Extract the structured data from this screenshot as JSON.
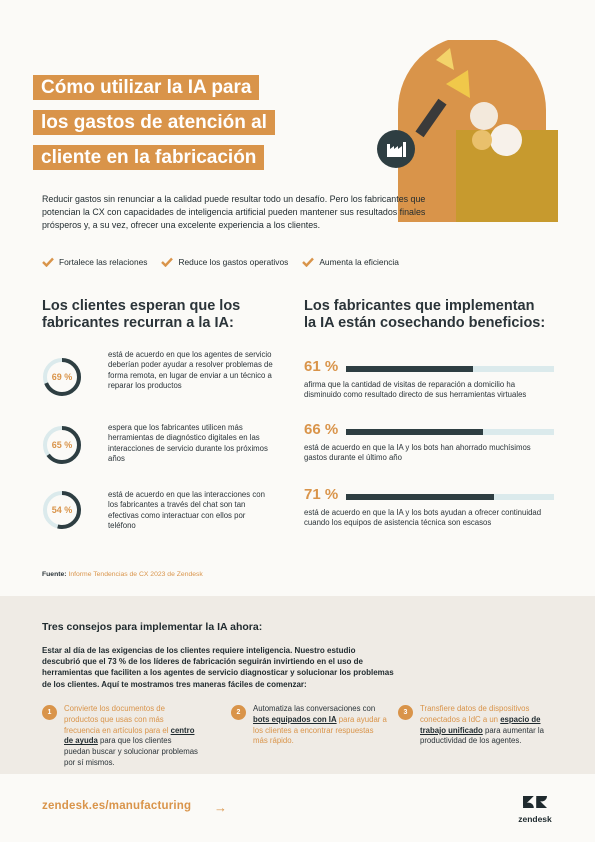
{
  "header": {
    "title_lines": [
      "Cómo utilizar la IA para",
      "los gastos de atención al",
      "cliente en la fabricación"
    ]
  },
  "intro": "Reducir gastos sin renunciar a la calidad puede resultar todo un desafío. Pero los fabricantes que potencian la CX con capacidades de inteligencia artificial pueden mantener sus resultados finales prósperos y, a su vez, ofrecer una excelente experiencia a los clientes.",
  "checks": [
    "Fortalece las relaciones",
    "Reduce los gastos operativos",
    "Aumenta la eficiencia"
  ],
  "left": {
    "title_lines": [
      "Los clientes esperan que los",
      "fabricantes recurran a la IA:"
    ],
    "stats": [
      {
        "pct_label": "69 %",
        "value": 69,
        "text": "está de acuerdo en que los agentes de servicio deberían poder ayudar a resolver problemas de forma remota, en lugar de enviar a un técnico a reparar los productos"
      },
      {
        "pct_label": "65 %",
        "value": 65,
        "text": "espera que los fabricantes utilicen más herramientas de diagnóstico digitales en las interacciones de servicio durante los próximos años"
      },
      {
        "pct_label": "54 %",
        "value": 54,
        "text": "está de acuerdo en que las interacciones con los fabricantes a través del chat son tan efectivas como interactuar con ellos por teléfono"
      }
    ]
  },
  "right": {
    "title_lines": [
      "Los fabricantes que implementan",
      "la IA están cosechando beneficios:"
    ],
    "bars": [
      {
        "pct_label": "61 %",
        "value": 61,
        "text": "afirma que la cantidad de visitas de reparación a domicilio ha disminuido como resultado directo de sus herramientas virtuales"
      },
      {
        "pct_label": "66 %",
        "value": 66,
        "text": "está de acuerdo en que la IA y los bots han ahorrado muchísimos gastos durante el último año"
      },
      {
        "pct_label": "71 %",
        "value": 71,
        "text": "está de acuerdo en que la IA y los bots ayudan a ofrecer continuidad cuando los equipos de asistencia técnica son escasos"
      }
    ]
  },
  "source": {
    "label": "Fuente:",
    "link": "Informe Tendencias de CX 2023 de Zendesk"
  },
  "tips": {
    "title": "Tres consejos para implementar la IA ahora:",
    "intro": "Estar al día de las exigencias de los clientes requiere inteligencia. Nuestro estudio descubrió que el 73 % de los líderes de fabricación seguirán invirtiendo en el uso de herramientas que faciliten a los agentes de servicio diagnosticar y solucionar los problemas de los clientes. Aquí te mostramos tres maneras fáciles de comenzar:",
    "items": [
      {
        "num": "1",
        "a": "Convierte los documentos de productos que usas con más frecuencia en artículos para el ",
        "link": "centro de ayuda",
        "b": " para que los clientes puedan buscar y solucionar problemas por sí mismos."
      },
      {
        "num": "2",
        "a": "Automatiza las conversaciones con ",
        "link": "bots equipados con IA",
        "b": " para ayudar a los clientes a encontrar respuestas más rápido."
      },
      {
        "num": "3",
        "a": "Transfiere datos de dispositivos conectados a IdC a un ",
        "link": "espacio de trabajo unificado",
        "b": " para aumentar la productividad de los agentes."
      }
    ]
  },
  "footer": {
    "url": "zendesk.es/manufacturing",
    "arrow": "→",
    "logo_text": "zendesk"
  },
  "colors": {
    "accent": "#d9944a",
    "dark": "#2e3e42",
    "track": "#dbeaec",
    "tips_bg": "#efebe5"
  }
}
